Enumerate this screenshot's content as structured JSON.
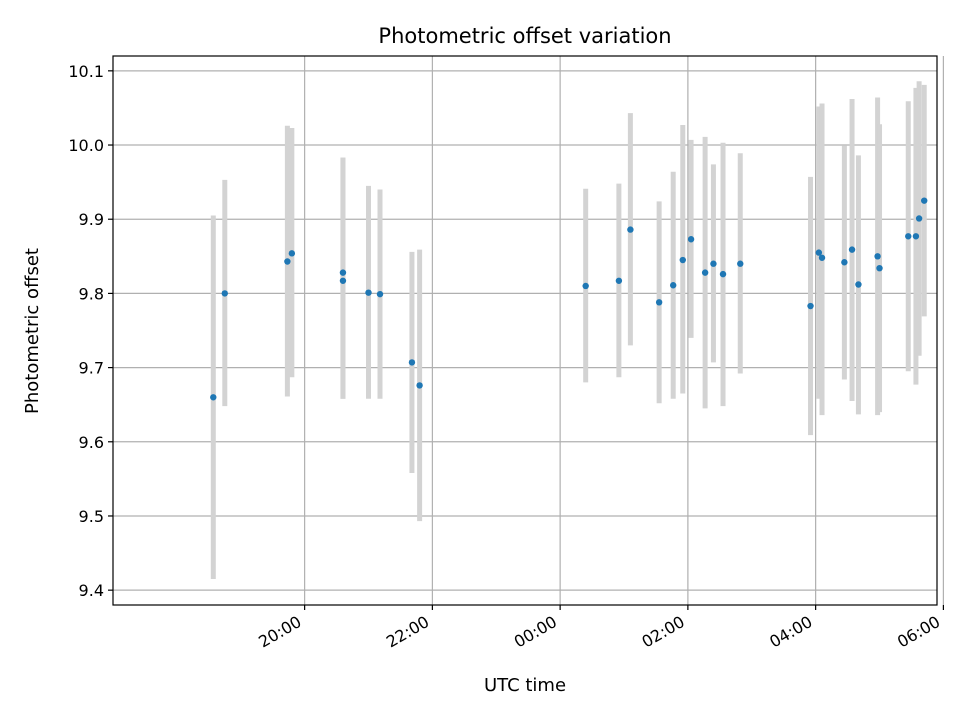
{
  "chart_data": {
    "type": "scatter",
    "title": "Photometric offset variation",
    "xlabel": "UTC time",
    "ylabel": "Photometric offset",
    "x_unit": "hours since 00:00 UTC",
    "xlim": [
      -7.0,
      5.9
    ],
    "ylim": [
      9.38,
      10.12
    ],
    "yticks": [
      9.4,
      9.5,
      9.6,
      9.7,
      9.8,
      9.9,
      10.0,
      10.1
    ],
    "ytick_labels": [
      "9.4",
      "9.5",
      "9.6",
      "9.7",
      "9.8",
      "9.9",
      "10.0",
      "10.1"
    ],
    "xticks": [
      -4,
      -2,
      0,
      2,
      4,
      6
    ],
    "xtick_labels": [
      "20:00",
      "22:00",
      "00:00",
      "02:00",
      "04:00",
      "06:00"
    ],
    "grid": true,
    "colors": {
      "points": "#1f77b4",
      "errorbars": "#d3d3d3",
      "grid": "#b0b0b0"
    },
    "points": [
      {
        "x": -5.43,
        "y": 9.66,
        "ylo": 9.415,
        "yhi": 9.905
      },
      {
        "x": -5.25,
        "y": 9.8,
        "ylo": 9.648,
        "yhi": 9.953
      },
      {
        "x": -4.27,
        "y": 9.843,
        "ylo": 9.661,
        "yhi": 10.026
      },
      {
        "x": -4.2,
        "y": 9.854,
        "ylo": 9.687,
        "yhi": 10.023
      },
      {
        "x": -3.4,
        "y": 9.828,
        "ylo": 9.658,
        "yhi": 9.983
      },
      {
        "x": -3.4,
        "y": 9.817,
        "ylo": 9.658,
        "yhi": 9.983
      },
      {
        "x": -3.0,
        "y": 9.801,
        "ylo": 9.658,
        "yhi": 9.945
      },
      {
        "x": -2.82,
        "y": 9.799,
        "ylo": 9.658,
        "yhi": 9.94
      },
      {
        "x": -2.32,
        "y": 9.707,
        "ylo": 9.558,
        "yhi": 9.856
      },
      {
        "x": -2.2,
        "y": 9.676,
        "ylo": 9.493,
        "yhi": 9.859
      },
      {
        "x": 0.4,
        "y": 9.81,
        "ylo": 9.68,
        "yhi": 9.941
      },
      {
        "x": 0.92,
        "y": 9.817,
        "ylo": 9.687,
        "yhi": 9.948
      },
      {
        "x": 1.1,
        "y": 9.886,
        "ylo": 9.73,
        "yhi": 10.043
      },
      {
        "x": 1.55,
        "y": 9.788,
        "ylo": 9.652,
        "yhi": 9.924
      },
      {
        "x": 1.77,
        "y": 9.811,
        "ylo": 9.658,
        "yhi": 9.964
      },
      {
        "x": 1.92,
        "y": 9.845,
        "ylo": 9.665,
        "yhi": 10.027
      },
      {
        "x": 2.05,
        "y": 9.873,
        "ylo": 9.74,
        "yhi": 10.007
      },
      {
        "x": 2.27,
        "y": 9.828,
        "ylo": 9.645,
        "yhi": 10.011
      },
      {
        "x": 2.4,
        "y": 9.84,
        "ylo": 9.707,
        "yhi": 9.974
      },
      {
        "x": 2.55,
        "y": 9.826,
        "ylo": 9.648,
        "yhi": 10.003
      },
      {
        "x": 2.82,
        "y": 9.84,
        "ylo": 9.692,
        "yhi": 9.989
      },
      {
        "x": 3.92,
        "y": 9.783,
        "ylo": 9.609,
        "yhi": 9.957
      },
      {
        "x": 4.05,
        "y": 9.855,
        "ylo": 9.658,
        "yhi": 10.052
      },
      {
        "x": 4.1,
        "y": 9.848,
        "ylo": 9.636,
        "yhi": 10.056
      },
      {
        "x": 4.45,
        "y": 9.842,
        "ylo": 9.684,
        "yhi": 9.999
      },
      {
        "x": 4.57,
        "y": 9.859,
        "ylo": 9.655,
        "yhi": 10.062
      },
      {
        "x": 4.67,
        "y": 9.812,
        "ylo": 9.637,
        "yhi": 9.986
      },
      {
        "x": 4.97,
        "y": 9.85,
        "ylo": 9.636,
        "yhi": 10.064
      },
      {
        "x": 5.0,
        "y": 9.834,
        "ylo": 9.64,
        "yhi": 10.028
      },
      {
        "x": 5.45,
        "y": 9.877,
        "ylo": 9.695,
        "yhi": 10.059
      },
      {
        "x": 5.57,
        "y": 9.877,
        "ylo": 9.677,
        "yhi": 10.077
      },
      {
        "x": 5.62,
        "y": 9.901,
        "ylo": 9.716,
        "yhi": 10.086
      },
      {
        "x": 5.7,
        "y": 9.925,
        "ylo": 9.769,
        "yhi": 10.081
      }
    ]
  }
}
